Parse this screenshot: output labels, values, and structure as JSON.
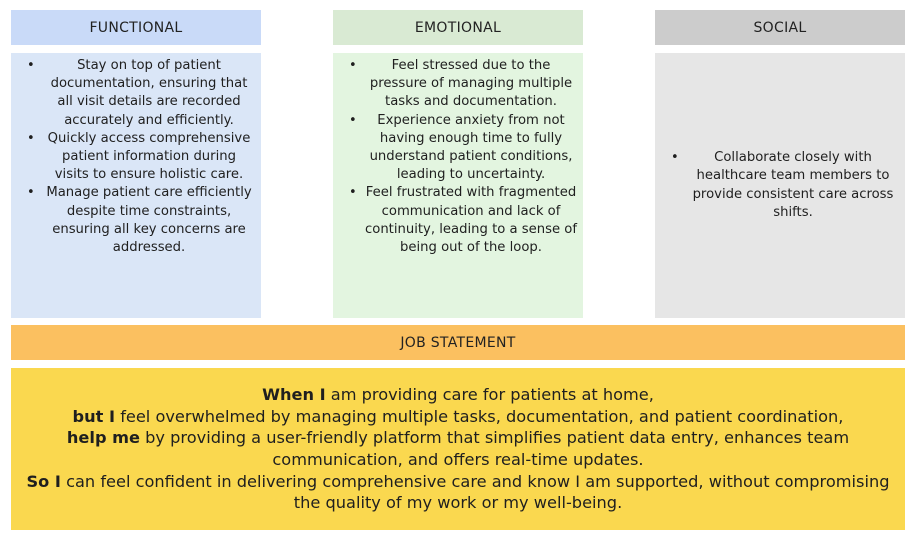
{
  "headers": {
    "functional": "FUNCTIONAL",
    "emotional": "EMOTIONAL",
    "social": "SOCIAL"
  },
  "functional": [
    "Stay on top of patient documentation, ensuring that all visit details are recorded accurately and efficiently.",
    "Quickly access comprehensive patient information during visits to ensure holistic care.",
    "Manage patient care efficiently despite time constraints, ensuring all key concerns are addressed."
  ],
  "emotional": [
    "Feel stressed due to the pressure of managing multiple tasks and documentation.",
    "Experience anxiety from not having enough time to fully understand patient conditions, leading to uncertainty.",
    "Feel frustrated with fragmented communication and lack of continuity, leading to a sense of being out of the loop."
  ],
  "social": [
    "Collaborate closely with healthcare team members to provide consistent care across shifts."
  ],
  "job": {
    "header": "JOB STATEMENT",
    "when_kw": "When I",
    "when_text": " am providing care for patients at home,",
    "but_kw": "but I",
    "but_text": " feel overwhelmed by managing multiple tasks, documentation, and patient coordination,",
    "help_kw": "help me",
    "help_text": " by providing a user-friendly platform that simplifies patient data entry, enhances team communication, and offers real-time updates.",
    "so_kw": "So I",
    "so_text": " can feel confident in delivering comprehensive care and know I am supported, without compromising the quality of my work or my well-being."
  }
}
